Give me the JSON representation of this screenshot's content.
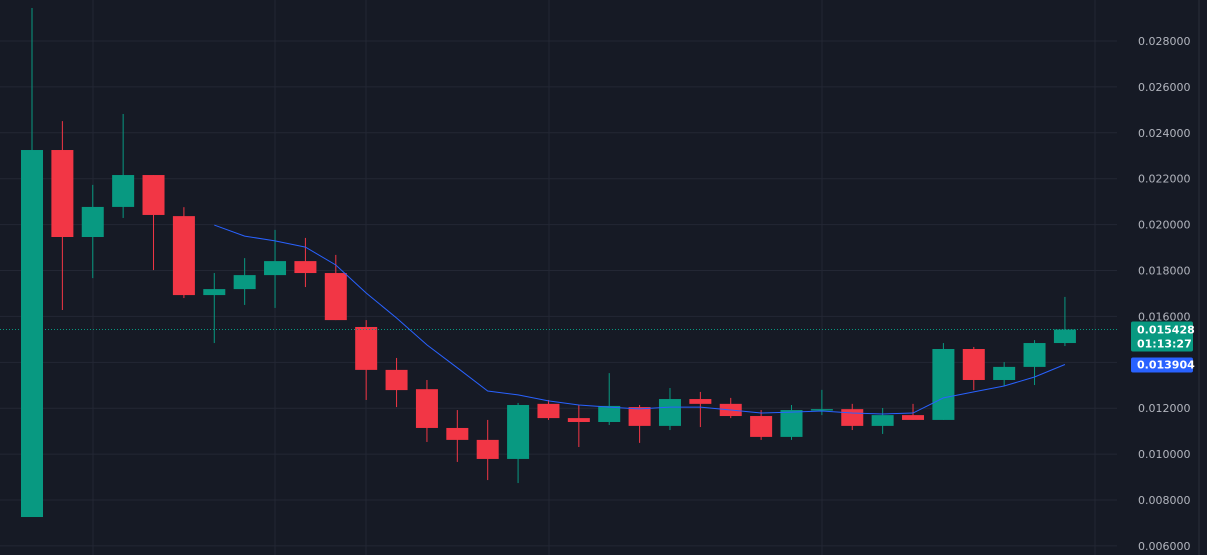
{
  "chart_data": {
    "type": "candlestick",
    "up_color": "#089981",
    "down_color": "#f23645",
    "open": [
      0.00726,
      0.02325,
      0.01946,
      0.02077,
      0.02216,
      0.02037,
      0.01693,
      0.01719,
      0.0178,
      0.01841,
      0.01789,
      0.01554,
      0.01367,
      0.01283,
      0.01114,
      0.01062,
      0.00979,
      0.01219,
      0.01157,
      0.0114,
      0.01205,
      0.01123,
      0.0124,
      0.01219,
      0.01166,
      0.01075,
      0.0119,
      0.01196,
      0.01123,
      0.0117,
      0.01149,
      0.01458,
      0.01323,
      0.0138,
      0.01484
    ],
    "high": [
      0.02944,
      0.02451,
      0.02173,
      0.02482,
      0.02216,
      0.02076,
      0.01789,
      0.01854,
      0.01977,
      0.01942,
      0.01868,
      0.01584,
      0.01419,
      0.01323,
      0.01192,
      0.01149,
      0.01223,
      0.01236,
      0.01214,
      0.01353,
      0.01214,
      0.01288,
      0.01271,
      0.01245,
      0.01192,
      0.01214,
      0.0128,
      0.01219,
      0.01201,
      0.01219,
      0.01484,
      0.01467,
      0.01401,
      0.01497,
      0.01685
    ],
    "low": [
      0.00726,
      0.01628,
      0.01767,
      0.02029,
      0.01802,
      0.0168,
      0.01484,
      0.0165,
      0.01637,
      0.01728,
      0.01584,
      0.01236,
      0.01205,
      0.01053,
      0.00966,
      0.00887,
      0.00874,
      0.01149,
      0.01031,
      0.01127,
      0.01049,
      0.01105,
      0.01118,
      0.01157,
      0.01062,
      0.01062,
      0.0117,
      0.01105,
      0.01088,
      0.01149,
      0.01149,
      0.01279,
      0.01297,
      0.01301,
      0.01471
    ],
    "close": [
      0.02325,
      0.01946,
      0.02077,
      0.02216,
      0.02042,
      0.01693,
      0.01719,
      0.0178,
      0.01841,
      0.01789,
      0.01584,
      0.01367,
      0.01279,
      0.01114,
      0.01062,
      0.00979,
      0.01214,
      0.01157,
      0.0114,
      0.0121,
      0.01123,
      0.0124,
      0.01219,
      0.01166,
      0.01075,
      0.01192,
      0.01196,
      0.01123,
      0.0117,
      0.01149,
      0.01458,
      0.01323,
      0.0138,
      0.01484,
      0.015428
    ],
    "moving_average": {
      "color": "#2962ff",
      "values": [
        null,
        null,
        null,
        null,
        null,
        null,
        0.01998,
        0.0195,
        0.01929,
        0.01902,
        0.01824,
        0.01702,
        0.01593,
        0.01476,
        0.01376,
        0.01275,
        0.01258,
        0.01232,
        0.01214,
        0.01205,
        0.01197,
        0.01205,
        0.01205,
        0.01192,
        0.01179,
        0.01183,
        0.01188,
        0.01179,
        0.01175,
        0.01179,
        0.01245,
        0.01271,
        0.01297,
        0.01336,
        0.013904
      ]
    },
    "ylim": [
      0.005605,
      0.029786
    ],
    "yticks": [
      {
        "value": 0.006,
        "label": "0.006000"
      },
      {
        "value": 0.008,
        "label": "0.008000"
      },
      {
        "value": 0.01,
        "label": "0.010000"
      },
      {
        "value": 0.012,
        "label": "0.012000"
      },
      {
        "value": 0.014,
        "label": "0.014000"
      },
      {
        "value": 0.016,
        "label": "0.016000"
      },
      {
        "value": 0.018,
        "label": "0.018000"
      },
      {
        "value": 0.02,
        "label": "0.020000"
      },
      {
        "value": 0.022,
        "label": "0.022000"
      },
      {
        "value": 0.024,
        "label": "0.024000"
      },
      {
        "value": 0.026,
        "label": "0.026000"
      },
      {
        "value": 0.028,
        "label": "0.028000"
      }
    ],
    "grid": true,
    "last_price": {
      "value": 0.015428,
      "label": "0.015428"
    },
    "countdown": "01:13:27",
    "ma_price": {
      "value": 0.013904,
      "label": "0.013904"
    }
  }
}
